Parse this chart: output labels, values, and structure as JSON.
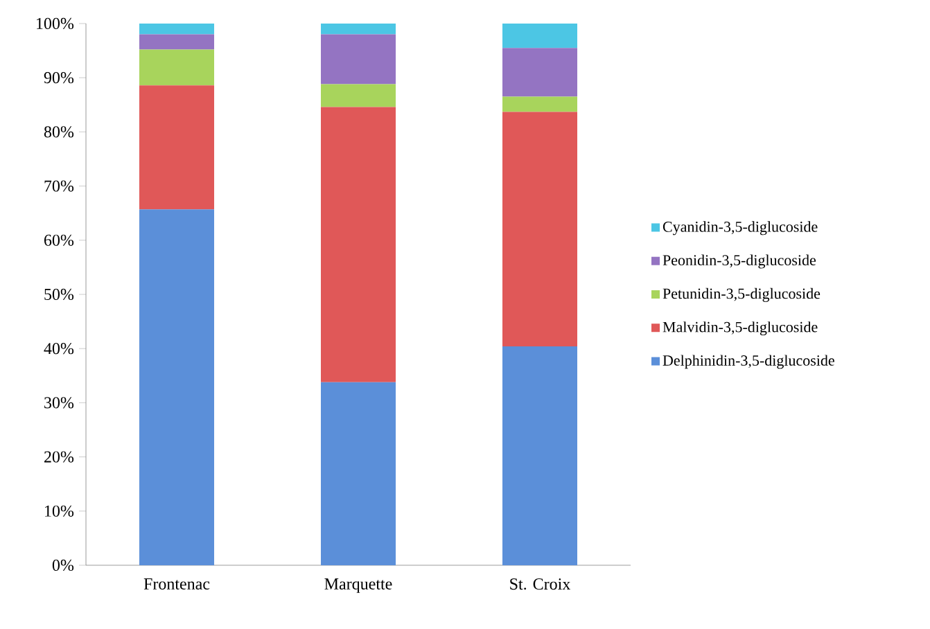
{
  "chart_data": {
    "type": "bar",
    "stacked": true,
    "categories": [
      "Frontenac",
      "Marquette",
      "St. Croix"
    ],
    "series": [
      {
        "name": "Delphinidin-3,5-diglucoside",
        "color": "#5b8fd9",
        "values": [
          65.7,
          33.8,
          40.4
        ]
      },
      {
        "name": "Malvidin-3,5-diglucoside",
        "color": "#e05858",
        "values": [
          22.9,
          50.8,
          43.3
        ]
      },
      {
        "name": "Petunidin-3,5-diglucoside",
        "color": "#a8d45c",
        "values": [
          6.6,
          4.2,
          2.8
        ]
      },
      {
        "name": "Peonidin-3,5-diglucoside",
        "color": "#9474c2",
        "values": [
          2.8,
          9.2,
          9.0
        ]
      },
      {
        "name": "Cyanidin-3,5-diglucoside",
        "color": "#4cc6e4",
        "values": [
          2.0,
          2.0,
          4.5
        ]
      }
    ],
    "ylim": [
      0,
      100
    ],
    "yticks": [
      {
        "value": 0,
        "label": "0%"
      },
      {
        "value": 10,
        "label": "10%"
      },
      {
        "value": 20,
        "label": "20%"
      },
      {
        "value": 30,
        "label": "30%"
      },
      {
        "value": 40,
        "label": "40%"
      },
      {
        "value": 50,
        "label": "50%"
      },
      {
        "value": 60,
        "label": "60%"
      },
      {
        "value": 70,
        "label": "70%"
      },
      {
        "value": 80,
        "label": "80%"
      },
      {
        "value": 90,
        "label": "90%"
      },
      {
        "value": 100,
        "label": "100%"
      }
    ],
    "grid": false,
    "legend": "right"
  }
}
